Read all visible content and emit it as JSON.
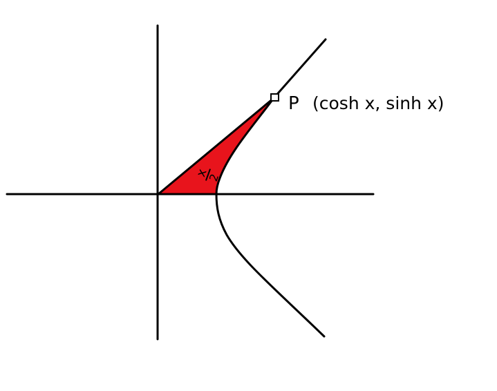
{
  "diagram": {
    "point_label": "P",
    "point_coords": "(cosh x, sinh x)",
    "area_label_numerator": "x",
    "area_label_denominator": "2",
    "colors": {
      "ink": "#000000",
      "region_fill": "#e8141c",
      "background": "#ffffff"
    },
    "elements": [
      "x-axis",
      "y-axis",
      "hyperbola-right-branch",
      "asymptote-ray",
      "shaded-sector",
      "point-marker"
    ]
  }
}
